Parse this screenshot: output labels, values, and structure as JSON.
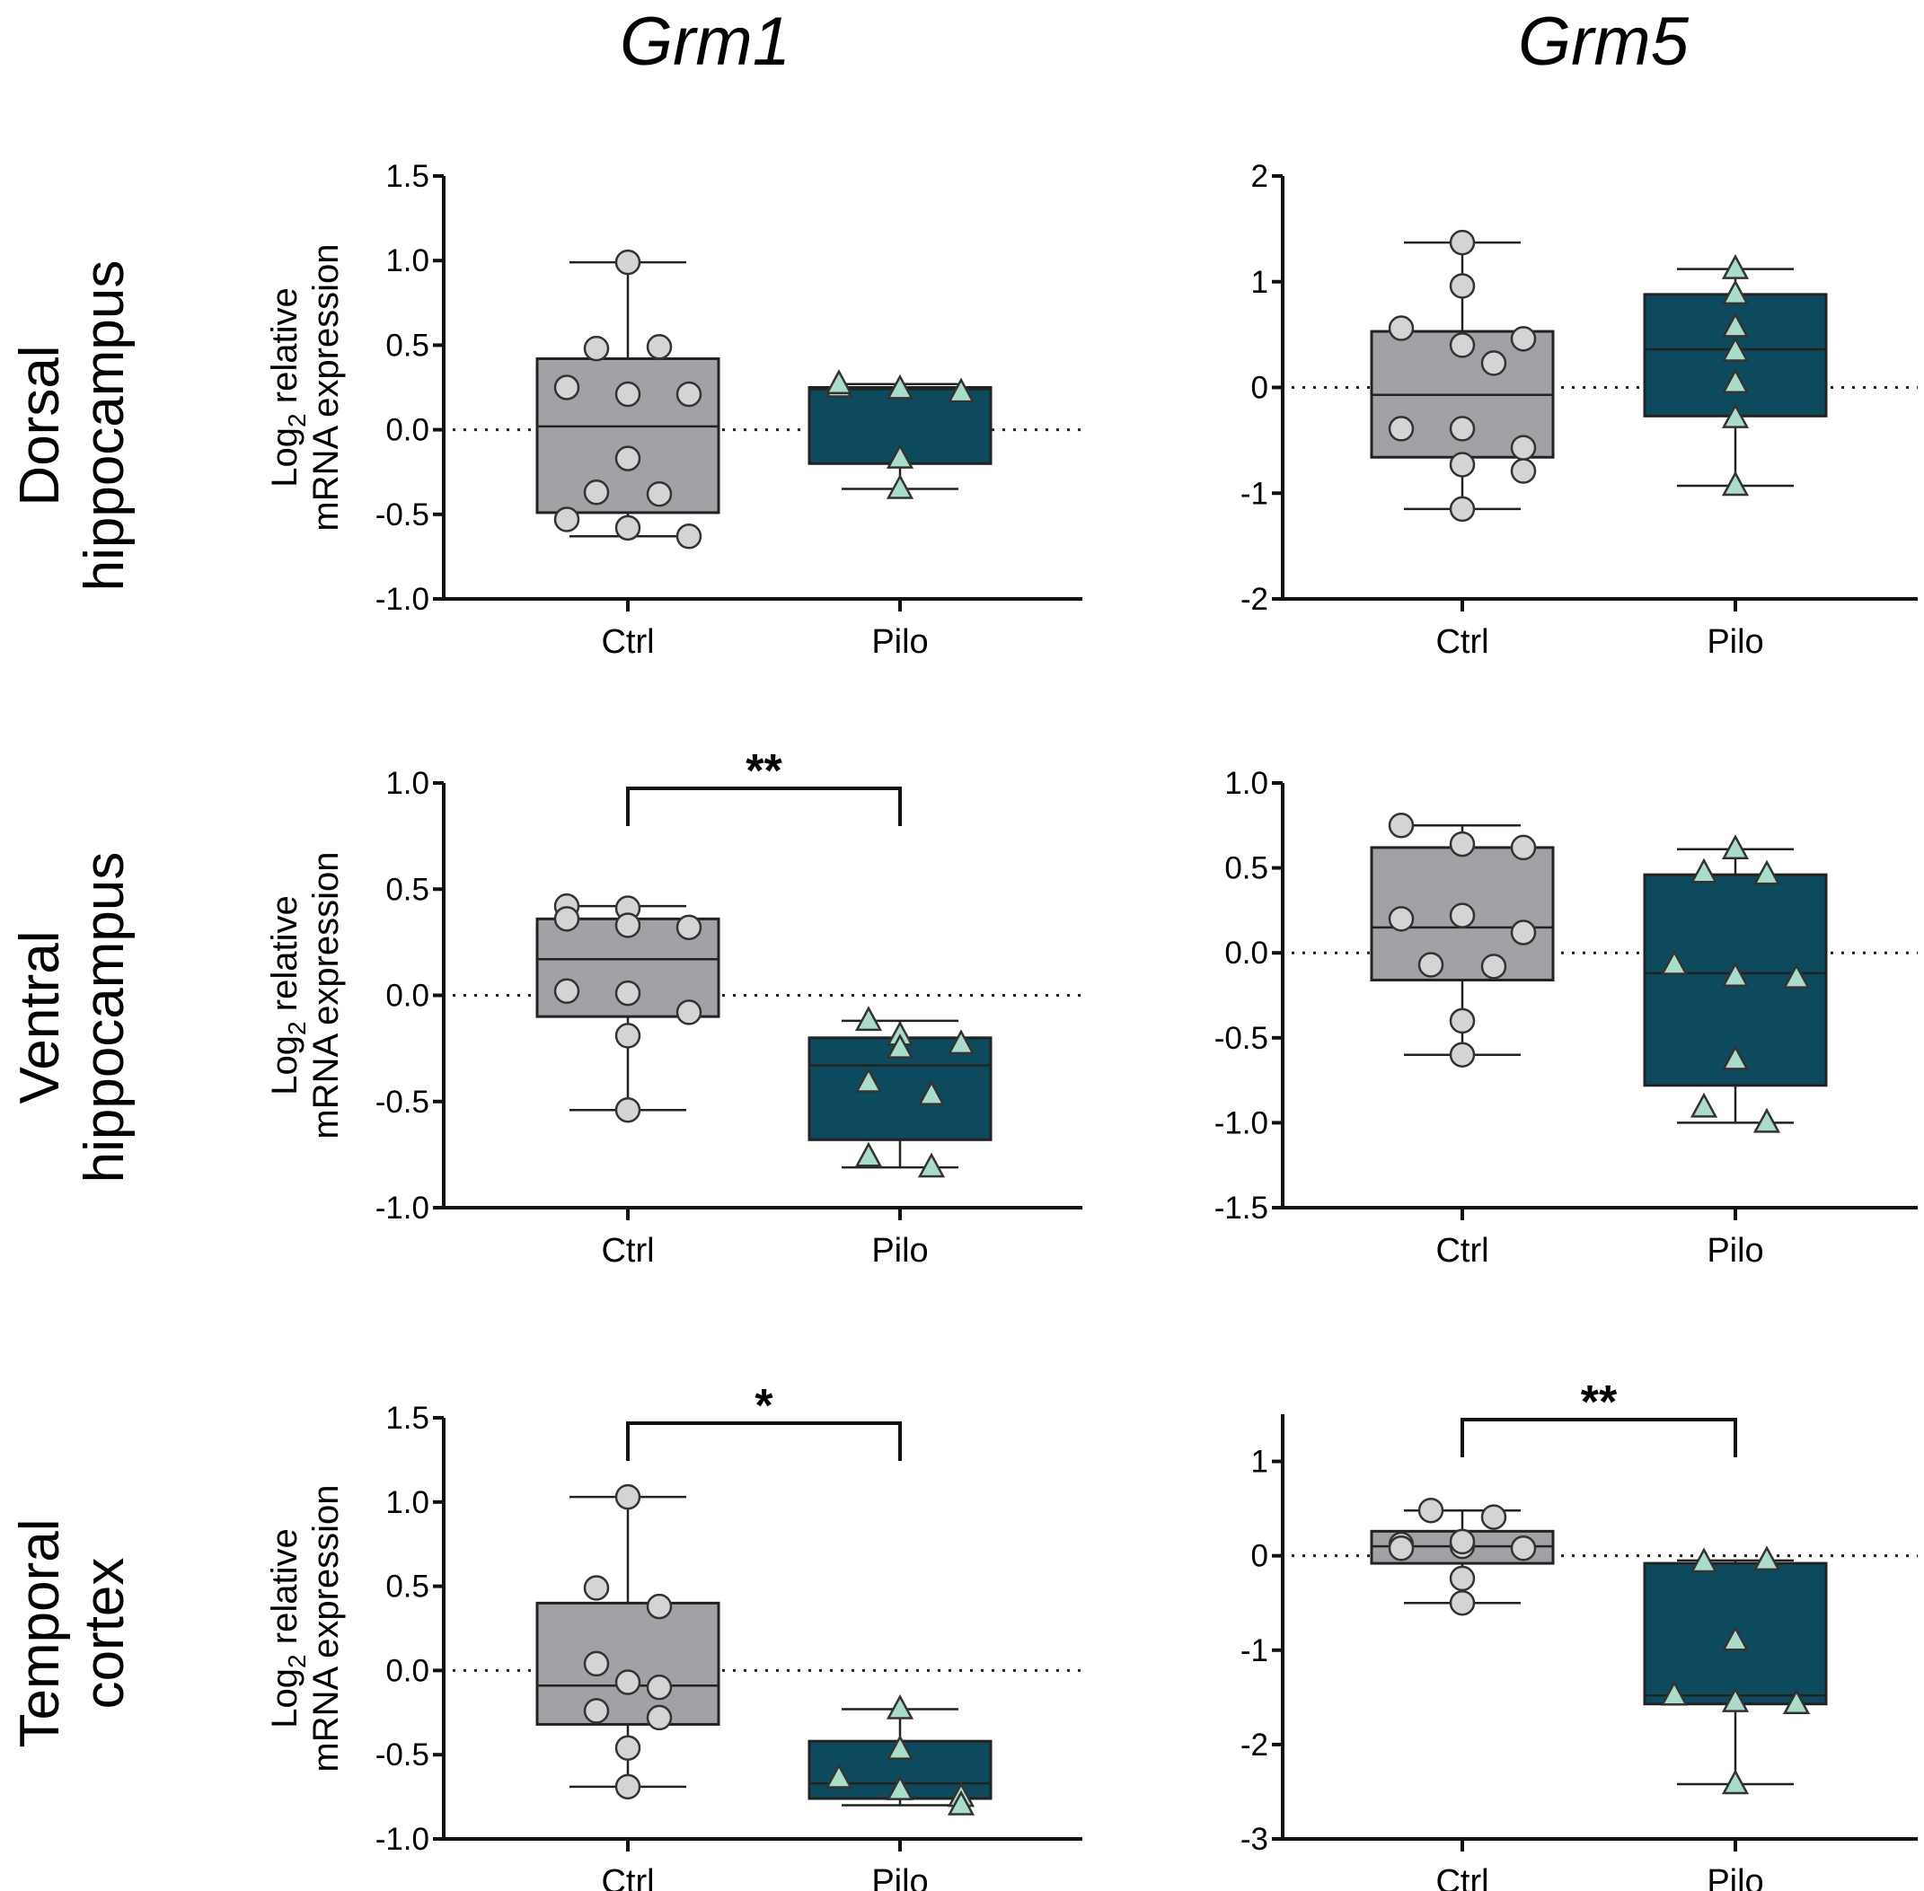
{
  "chart_data": {
    "type": "box",
    "columns": [
      "Grm1",
      "Grm5"
    ],
    "rows": [
      [
        "Dorsal",
        "hippocampus"
      ],
      [
        "Ventral",
        "hippocampus"
      ],
      [
        "Temporal",
        "cortex"
      ]
    ],
    "ylabel": {
      "prefix": "Log",
      "sub": "2",
      "suffix": " relative",
      "line2": "mRNA expression"
    },
    "colors": {
      "ctrl_box": "#a2a2a6",
      "pilo_box": "#0e4a5e",
      "ctrl_point": "#d4d4d4",
      "pilo_point": "#a9dcc9"
    },
    "panels": [
      {
        "gene": "Grm1",
        "region": "Dorsal hippocampus",
        "ylim": [
          -1.0,
          1.5
        ],
        "yticks": [
          "1.5",
          "1.0",
          "0.5",
          "0.0",
          "-0.5",
          "-1.0"
        ],
        "reference_line": 0,
        "groups": [
          {
            "name": "Ctrl",
            "q1": -0.49,
            "median": 0.02,
            "q3": 0.42,
            "whisker": [
              -0.63,
              0.99
            ],
            "points": [
              0.99,
              0.48,
              0.49,
              0.25,
              0.21,
              0.21,
              -0.17,
              -0.37,
              -0.38,
              -0.53,
              -0.58,
              -0.63
            ]
          },
          {
            "name": "Pilo",
            "q1": -0.2,
            "median": 0.24,
            "q3": 0.25,
            "whisker": [
              -0.35,
              0.27
            ],
            "points": [
              0.25,
              0.24,
              0.22,
              0.27,
              -0.17,
              -0.35
            ]
          }
        ],
        "significance": ""
      },
      {
        "gene": "Grm5",
        "region": "Dorsal hippocampus",
        "ylim": [
          -2,
          2
        ],
        "yticks": [
          "2",
          "1",
          "0",
          "-1",
          "-2"
        ],
        "reference_line": 0,
        "groups": [
          {
            "name": "Ctrl",
            "q1": -0.66,
            "median": -0.07,
            "q3": 0.53,
            "whisker": [
              -1.15,
              1.37
            ],
            "points": [
              1.37,
              0.96,
              0.56,
              0.4,
              0.46,
              0.23,
              -0.39,
              -0.39,
              -0.57,
              -0.73,
              -0.79,
              -1.15
            ]
          },
          {
            "name": "Pilo",
            "q1": -0.27,
            "median": 0.36,
            "q3": 0.88,
            "whisker": [
              -0.93,
              1.12
            ],
            "points": [
              1.12,
              0.88,
              0.57,
              0.34,
              0.04,
              -0.29,
              -0.93
            ]
          }
        ],
        "significance": ""
      },
      {
        "gene": "Grm1",
        "region": "Ventral hippocampus",
        "ylim": [
          -1.0,
          1.0
        ],
        "yticks": [
          "1.0",
          "0.5",
          "0.0",
          "-0.5",
          "-1.0"
        ],
        "reference_line": 0,
        "groups": [
          {
            "name": "Ctrl",
            "q1": -0.1,
            "median": 0.17,
            "q3": 0.36,
            "whisker": [
              -0.54,
              0.42
            ],
            "points": [
              0.42,
              0.41,
              0.32,
              0.36,
              0.33,
              0.02,
              0.01,
              -0.08,
              -0.19,
              -0.54
            ]
          },
          {
            "name": "Pilo",
            "q1": -0.68,
            "median": -0.33,
            "q3": -0.2,
            "whisker": [
              -0.81,
              -0.12
            ],
            "points": [
              -0.12,
              -0.19,
              -0.25,
              -0.23,
              -0.41,
              -0.47,
              -0.76,
              -0.81
            ]
          }
        ],
        "significance": "**"
      },
      {
        "gene": "Grm5",
        "region": "Ventral hippocampus",
        "ylim": [
          -1.5,
          1.0
        ],
        "yticks": [
          "1.0",
          "0.5",
          "0.0",
          "-0.5",
          "-1.0",
          "-1.5"
        ],
        "reference_line": 0,
        "groups": [
          {
            "name": "Ctrl",
            "q1": -0.16,
            "median": 0.15,
            "q3": 0.62,
            "whisker": [
              -0.6,
              0.75
            ],
            "points": [
              0.75,
              0.64,
              0.62,
              0.2,
              0.22,
              0.12,
              -0.07,
              -0.08,
              -0.4,
              -0.6
            ]
          },
          {
            "name": "Pilo",
            "q1": -0.78,
            "median": -0.12,
            "q3": 0.46,
            "whisker": [
              -1.0,
              0.61
            ],
            "points": [
              0.61,
              0.47,
              0.46,
              -0.07,
              -0.14,
              -0.15,
              -0.63,
              -0.91,
              -1.0
            ]
          }
        ],
        "significance": ""
      },
      {
        "gene": "Grm1",
        "region": "Temporal cortex",
        "ylim": [
          -1.0,
          1.5
        ],
        "yticks": [
          "1.5",
          "1.0",
          "0.5",
          "0.0",
          "-0.5",
          "-1.0"
        ],
        "reference_line": 0,
        "groups": [
          {
            "name": "Ctrl",
            "q1": -0.32,
            "median": -0.09,
            "q3": 0.4,
            "whisker": [
              -0.69,
              1.03
            ],
            "points": [
              1.03,
              0.49,
              0.38,
              0.04,
              -0.07,
              -0.1,
              -0.24,
              -0.28,
              -0.46,
              -0.69
            ]
          },
          {
            "name": "Pilo",
            "q1": -0.76,
            "median": -0.67,
            "q3": -0.42,
            "whisker": [
              -0.8,
              -0.23
            ],
            "points": [
              -0.23,
              -0.47,
              -0.64,
              -0.71,
              -0.75,
              -0.8
            ]
          }
        ],
        "significance": "*"
      },
      {
        "gene": "Grm5",
        "region": "Temporal cortex",
        "ylim": [
          -3,
          1.5
        ],
        "yticks": [
          "1",
          "0",
          "-1",
          "-2",
          "-3"
        ],
        "reference_line": 0,
        "groups": [
          {
            "name": "Ctrl",
            "q1": -0.08,
            "median": 0.1,
            "q3": 0.26,
            "whisker": [
              -0.5,
              0.48
            ],
            "points": [
              0.48,
              0.41,
              0.12,
              0.1,
              0.08,
              0.08,
              0.15,
              -0.24,
              -0.5
            ]
          },
          {
            "name": "Pilo",
            "q1": -1.57,
            "median": -1.48,
            "q3": -0.08,
            "whisker": [
              -2.42,
              -0.05
            ],
            "points": [
              -0.07,
              -0.05,
              -0.9,
              -1.48,
              -1.55,
              -1.57,
              -2.42
            ]
          }
        ],
        "significance": "**"
      }
    ]
  }
}
